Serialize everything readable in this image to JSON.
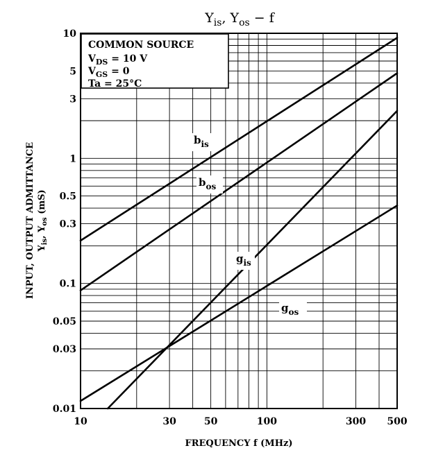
{
  "chart_data": {
    "type": "line",
    "title": {
      "main": "Y",
      "sub1": "is",
      "mid": ", Y",
      "sub2": "os",
      "tail": " − f"
    },
    "xlabel": "FREQUENCY  f  (MHz)",
    "ylabel": {
      "line1": "INPUT, OUTPUT ADMITTANCE",
      "y1": "Y",
      "s1": "is",
      "sep": ", Y",
      "s2": "os",
      "unit": "   (mS)"
    },
    "x_scale": "log",
    "y_scale": "log",
    "xlim": [
      10,
      500
    ],
    "ylim": [
      0.01,
      10
    ],
    "x_ticks": [
      10,
      30,
      50,
      100,
      300,
      500
    ],
    "x_tick_labels": [
      "10",
      "30",
      "50",
      "100",
      "300",
      "500"
    ],
    "y_ticks": [
      0.01,
      0.03,
      0.05,
      0.1,
      0.3,
      0.5,
      1,
      3,
      5,
      10
    ],
    "y_tick_labels": [
      "0.01",
      "0.03",
      "0.05",
      "0.1",
      "0.3",
      "0.5",
      "1",
      "3",
      "5",
      "10"
    ],
    "grid": true,
    "conditions": {
      "line1": "COMMON SOURCE",
      "v1": "V",
      "v1sub": "DS",
      "v1val": " = 10 V",
      "v2": "V",
      "v2sub": "GS",
      "v2val": " = 0",
      "line4": "Ta = 25°C"
    },
    "series": [
      {
        "name": "bis",
        "label_main": "b",
        "label_sub": "is",
        "x": [
          10,
          500
        ],
        "y": [
          0.22,
          9.2
        ]
      },
      {
        "name": "bos",
        "label_main": "b",
        "label_sub": "os",
        "x": [
          10,
          500
        ],
        "y": [
          0.088,
          4.8
        ]
      },
      {
        "name": "gis",
        "label_main": "g",
        "label_sub": "is",
        "x": [
          14,
          500
        ],
        "y": [
          0.01,
          2.4
        ]
      },
      {
        "name": "gos",
        "label_main": "g",
        "label_sub": "os",
        "x": [
          10,
          500
        ],
        "y": [
          0.0115,
          0.42
        ]
      }
    ]
  }
}
